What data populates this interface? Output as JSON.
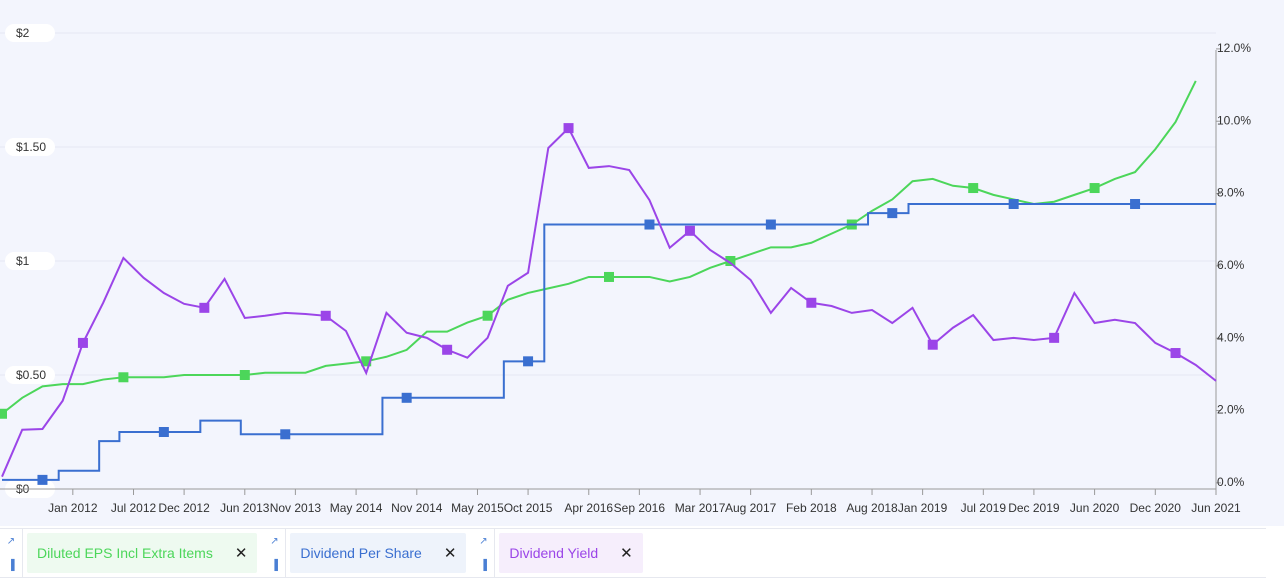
{
  "chart_data": {
    "type": "line",
    "x": [
      "2011-06",
      "2011-08",
      "2011-10",
      "2011-12",
      "2012-02",
      "2012-04",
      "2012-06",
      "2012-08",
      "2012-10",
      "2012-12",
      "2013-02",
      "2013-04",
      "2013-06",
      "2013-08",
      "2013-10",
      "2013-12",
      "2014-02",
      "2014-04",
      "2014-06",
      "2014-08",
      "2014-10",
      "2014-12",
      "2015-02",
      "2015-04",
      "2015-06",
      "2015-08",
      "2015-10",
      "2015-12",
      "2016-02",
      "2016-04",
      "2016-06",
      "2016-08",
      "2016-10",
      "2016-12",
      "2017-02",
      "2017-04",
      "2017-06",
      "2017-08",
      "2017-10",
      "2017-12",
      "2018-02",
      "2018-04",
      "2018-06",
      "2018-08",
      "2018-10",
      "2018-12",
      "2019-02",
      "2019-04",
      "2019-06",
      "2019-08",
      "2019-10",
      "2019-12",
      "2020-02",
      "2020-04",
      "2020-06",
      "2020-08",
      "2020-10",
      "2020-12",
      "2021-02",
      "2021-04",
      "2021-06"
    ],
    "xlim": [
      "2011-06",
      "2021-06"
    ],
    "xticks": [
      {
        "value": "2012-01",
        "label": "Jan 2012"
      },
      {
        "value": "2012-07",
        "label": "Jul 2012"
      },
      {
        "value": "2012-12",
        "label": "Dec 2012"
      },
      {
        "value": "2013-06",
        "label": "Jun 2013"
      },
      {
        "value": "2013-11",
        "label": "Nov 2013"
      },
      {
        "value": "2014-05",
        "label": "May 2014"
      },
      {
        "value": "2014-11",
        "label": "Nov 2014"
      },
      {
        "value": "2015-05",
        "label": "May 2015"
      },
      {
        "value": "2015-10",
        "label": "Oct 2015"
      },
      {
        "value": "2016-04",
        "label": "Apr 2016"
      },
      {
        "value": "2016-09",
        "label": "Sep 2016"
      },
      {
        "value": "2017-03",
        "label": "Mar 2017"
      },
      {
        "value": "2017-08",
        "label": "Aug 2017"
      },
      {
        "value": "2018-02",
        "label": "Feb 2018"
      },
      {
        "value": "2018-08",
        "label": "Aug 2018"
      },
      {
        "value": "2019-01",
        "label": "Jan 2019"
      },
      {
        "value": "2019-07",
        "label": "Jul 2019"
      },
      {
        "value": "2019-12",
        "label": "Dec 2019"
      },
      {
        "value": "2020-06",
        "label": "Jun 2020"
      },
      {
        "value": "2020-12",
        "label": "Dec 2020"
      },
      {
        "value": "2021-06",
        "label": "Jun 2021"
      }
    ],
    "ylim": [
      0,
      2
    ],
    "yticks": [
      {
        "value": 0,
        "label": "$0"
      },
      {
        "value": 0.5,
        "label": "$0.50"
      },
      {
        "value": 1,
        "label": "$1"
      },
      {
        "value": 1.5,
        "label": "$1.50"
      },
      {
        "value": 2,
        "label": "$2"
      }
    ],
    "y2lim": [
      -0.17,
      12.44
    ],
    "y2ticks": [
      {
        "value": 0,
        "label": "0.0%"
      },
      {
        "value": 2,
        "label": "2.0%"
      },
      {
        "value": 4,
        "label": "4.0%"
      },
      {
        "value": 6,
        "label": "6.0%"
      },
      {
        "value": 8,
        "label": "8.0%"
      },
      {
        "value": 10,
        "label": "10.0%"
      },
      {
        "value": 12,
        "label": "12.0%"
      }
    ],
    "grid": true,
    "series": [
      {
        "name": "Diluted EPS Incl Extra Items",
        "color": "#4cd65a",
        "values": [
          0.33,
          0.4,
          0.45,
          0.46,
          0.46,
          0.48,
          0.49,
          0.49,
          0.49,
          0.5,
          0.5,
          0.5,
          0.5,
          0.51,
          0.51,
          0.51,
          0.54,
          0.55,
          0.56,
          0.58,
          0.61,
          0.69,
          0.69,
          0.73,
          0.76,
          0.83,
          0.86,
          0.88,
          0.9,
          0.93,
          0.93,
          0.93,
          0.93,
          0.91,
          0.93,
          0.97,
          1.0,
          1.03,
          1.06,
          1.06,
          1.08,
          1.12,
          1.16,
          1.22,
          1.27,
          1.35,
          1.36,
          1.33,
          1.32,
          1.29,
          1.27,
          1.25,
          1.26,
          1.29,
          1.32,
          1.36,
          1.39,
          1.49,
          1.61,
          1.79,
          null
        ]
      },
      {
        "name": "Dividend Per Share",
        "color": "#3a6fd0",
        "values": [
          0.04,
          0.04,
          0.04,
          0.08,
          0.08,
          0.21,
          0.25,
          0.25,
          0.25,
          0.25,
          0.3,
          0.3,
          0.24,
          0.24,
          0.24,
          0.24,
          0.24,
          0.24,
          0.24,
          0.4,
          0.4,
          0.4,
          0.4,
          0.4,
          0.4,
          0.56,
          0.56,
          1.16,
          1.16,
          1.16,
          1.16,
          1.16,
          1.16,
          1.16,
          1.16,
          1.16,
          1.16,
          1.16,
          1.16,
          1.16,
          1.16,
          1.16,
          1.16,
          1.21,
          1.21,
          1.25,
          1.25,
          1.25,
          1.25,
          1.25,
          1.25,
          1.25,
          1.25,
          1.25,
          1.25,
          1.25,
          1.25,
          1.25,
          1.25,
          1.25,
          1.25
        ]
      },
      {
        "name": "Dividend Yield",
        "color": "#9b45e8",
        "axis": "y2",
        "values": [
          0.17,
          1.47,
          1.49,
          2.27,
          3.87,
          4.98,
          6.22,
          5.67,
          5.25,
          4.95,
          4.84,
          5.64,
          4.56,
          4.62,
          4.7,
          4.67,
          4.62,
          4.2,
          3.04,
          4.7,
          4.15,
          4.01,
          3.68,
          3.46,
          4.01,
          5.45,
          5.81,
          9.26,
          9.81,
          8.71,
          8.76,
          8.65,
          7.82,
          6.5,
          6.97,
          6.44,
          6.08,
          5.61,
          4.7,
          5.39,
          4.98,
          4.89,
          4.7,
          4.78,
          4.42,
          4.84,
          3.82,
          4.29,
          4.64,
          3.95,
          4.01,
          3.95,
          4.01,
          5.25,
          4.42,
          4.51,
          4.42,
          3.87,
          3.59,
          3.26,
          2.82
        ]
      }
    ]
  }
}
